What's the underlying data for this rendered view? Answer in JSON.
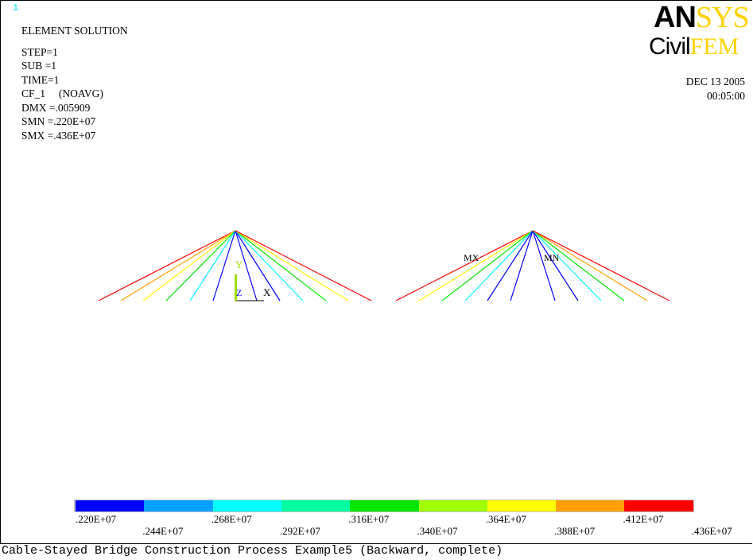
{
  "window": {
    "number": "1"
  },
  "info": {
    "title": "ELEMENT SOLUTION",
    "step": "STEP=1",
    "sub": "SUB =1",
    "time": "TIME=1",
    "result": "CF_1     (NOAVG)",
    "dmx": "DMX =.005909",
    "smn": "SMN =.220E+07",
    "smx": "SMX =.436E+07"
  },
  "logo": {
    "ansys_dark": "AN",
    "ansys_light": "SYS",
    "civil_dark": "Civil",
    "civil_light": "FEM"
  },
  "date": {
    "date": "DEC 13 2005",
    "time": "00:05:00"
  },
  "triad": {
    "x": "X",
    "y": "Y",
    "z": "Z"
  },
  "markers": {
    "max": "MX",
    "min": "MN"
  },
  "legend": {
    "colors": [
      "#0000ff",
      "#00a0ff",
      "#00ffff",
      "#00ffa0",
      "#00e600",
      "#a0ff00",
      "#ffff00",
      "#ffa000",
      "#ff0000"
    ],
    "labels": [
      ".220E+07",
      ".244E+07",
      ".268E+07",
      ".292E+07",
      ".316E+07",
      ".340E+07",
      ".364E+07",
      ".388E+07",
      ".412E+07",
      ".436E+07"
    ]
  },
  "caption": "Cable-Stayed Bridge Construction Process Example5 (Backward, complete)"
}
